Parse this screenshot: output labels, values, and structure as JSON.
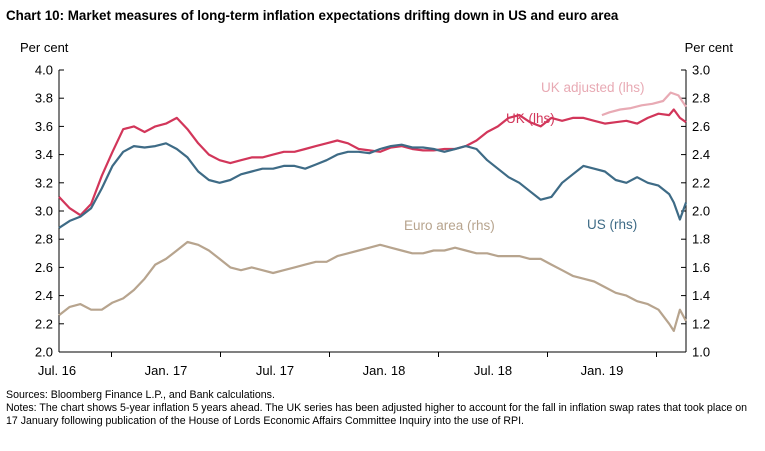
{
  "title": "Chart 10:  Market measures of long-term inflation expectations drifting down in US and euro area",
  "unit_left": "Per cent",
  "unit_right": "Per cent",
  "sources": "Sources:  Bloomberg Finance L.P., and Bank calculations.",
  "notes": "Notes:  The chart shows 5-year inflation 5 years ahead.  The UK series has been adjusted higher to account for the fall in inflation swap rates that took place on 17 January following publication of the House of Lords Economic Affairs Committee Inquiry into the use of RPI.",
  "colors": {
    "uk": "#d2365a",
    "uk_adjusted": "#e8aab4",
    "us": "#3e6b86",
    "euro": "#b7a48e",
    "axis": "#000000"
  },
  "chart_data": {
    "type": "line",
    "x_ticks": [
      "Jul. 16",
      "Jan. 17",
      "Jul. 17",
      "Jan. 18",
      "Jul. 18",
      "Jan. 19"
    ],
    "x_range": [
      0,
      41
    ],
    "ylim_left": [
      2.0,
      4.0
    ],
    "ylim_right": [
      1.0,
      3.0
    ],
    "y_ticks_left": [
      "4.0",
      "3.8",
      "3.6",
      "3.4",
      "3.2",
      "3.0",
      "2.8",
      "2.6",
      "2.4",
      "2.2",
      "2.0"
    ],
    "y_ticks_right": [
      "3.0",
      "2.8",
      "2.6",
      "2.4",
      "2.2",
      "2.0",
      "1.8",
      "1.6",
      "1.4",
      "1.2",
      "1.0"
    ],
    "series": [
      {
        "name": "UK (lhs)",
        "axis": "left",
        "color_key": "uk",
        "x": [
          0,
          0.7,
          1.4,
          2.1,
          2.8,
          3.5,
          4.2,
          4.9,
          5.6,
          6.3,
          7,
          7.7,
          8.4,
          9.1,
          9.8,
          10.5,
          11.2,
          11.9,
          12.6,
          13.3,
          14,
          14.7,
          15.4,
          16.1,
          16.8,
          17.5,
          18.2,
          18.9,
          19.6,
          20.3,
          21,
          21.7,
          22.4,
          23.1,
          23.8,
          24.5,
          25.2,
          25.9,
          26.6,
          27.3,
          28,
          28.7,
          29.4,
          30.1,
          30.8,
          31.5,
          32.2,
          32.9,
          33.6,
          34.3,
          35,
          35.7,
          36.4,
          37.1,
          37.8,
          38.5,
          39.2,
          39.9,
          40.2,
          40.6,
          41
        ],
        "y": [
          3.1,
          3.02,
          2.97,
          3.05,
          3.25,
          3.42,
          3.58,
          3.6,
          3.56,
          3.6,
          3.62,
          3.66,
          3.58,
          3.48,
          3.4,
          3.36,
          3.34,
          3.36,
          3.38,
          3.38,
          3.4,
          3.42,
          3.42,
          3.44,
          3.46,
          3.48,
          3.5,
          3.48,
          3.44,
          3.43,
          3.42,
          3.45,
          3.46,
          3.44,
          3.43,
          3.43,
          3.44,
          3.44,
          3.46,
          3.5,
          3.56,
          3.6,
          3.66,
          3.68,
          3.63,
          3.6,
          3.66,
          3.64,
          3.66,
          3.66,
          3.64,
          3.62,
          3.63,
          3.64,
          3.62,
          3.66,
          3.69,
          3.68,
          3.72,
          3.66,
          3.63
        ]
      },
      {
        "name": "UK adjusted (lhs)",
        "axis": "left",
        "color_key": "uk_adjusted",
        "x": [
          35.5,
          36,
          36.7,
          37.4,
          38.1,
          38.8,
          39.5,
          40,
          40.5,
          41
        ],
        "y": [
          3.68,
          3.7,
          3.72,
          3.73,
          3.75,
          3.76,
          3.78,
          3.84,
          3.82,
          3.74
        ]
      },
      {
        "name": "US (rhs)",
        "axis": "right",
        "color_key": "us",
        "x": [
          0,
          0.7,
          1.4,
          2.1,
          2.8,
          3.5,
          4.2,
          4.9,
          5.6,
          6.3,
          7,
          7.7,
          8.4,
          9.1,
          9.8,
          10.5,
          11.2,
          11.9,
          12.6,
          13.3,
          14,
          14.7,
          15.4,
          16.1,
          16.8,
          17.5,
          18.2,
          18.9,
          19.6,
          20.3,
          21,
          21.7,
          22.4,
          23.1,
          23.8,
          24.5,
          25.2,
          25.9,
          26.6,
          27.3,
          28,
          28.7,
          29.4,
          30.1,
          30.8,
          31.5,
          32.2,
          32.9,
          33.6,
          34.3,
          35,
          35.7,
          36.4,
          37.1,
          37.8,
          38.5,
          39.2,
          39.9,
          40.2,
          40.6,
          41
        ],
        "y": [
          1.88,
          1.93,
          1.96,
          2.02,
          2.16,
          2.32,
          2.42,
          2.46,
          2.45,
          2.46,
          2.48,
          2.44,
          2.38,
          2.28,
          2.22,
          2.2,
          2.22,
          2.26,
          2.28,
          2.3,
          2.3,
          2.32,
          2.32,
          2.3,
          2.33,
          2.36,
          2.4,
          2.42,
          2.42,
          2.41,
          2.44,
          2.46,
          2.47,
          2.45,
          2.45,
          2.44,
          2.42,
          2.44,
          2.46,
          2.44,
          2.36,
          2.3,
          2.24,
          2.2,
          2.14,
          2.08,
          2.1,
          2.2,
          2.26,
          2.32,
          2.3,
          2.28,
          2.22,
          2.2,
          2.24,
          2.2,
          2.18,
          2.12,
          2.06,
          1.94,
          2.06
        ]
      },
      {
        "name": "Euro area (rhs)",
        "axis": "right",
        "color_key": "euro",
        "x": [
          0,
          0.7,
          1.4,
          2.1,
          2.8,
          3.5,
          4.2,
          4.9,
          5.6,
          6.3,
          7,
          7.7,
          8.4,
          9.1,
          9.8,
          10.5,
          11.2,
          11.9,
          12.6,
          13.3,
          14,
          14.7,
          15.4,
          16.1,
          16.8,
          17.5,
          18.2,
          18.9,
          19.6,
          20.3,
          21,
          21.7,
          22.4,
          23.1,
          23.8,
          24.5,
          25.2,
          25.9,
          26.6,
          27.3,
          28,
          28.7,
          29.4,
          30.1,
          30.8,
          31.5,
          32.2,
          32.9,
          33.6,
          34.3,
          35,
          35.7,
          36.4,
          37.1,
          37.8,
          38.5,
          39.2,
          39.9,
          40.2,
          40.6,
          41
        ],
        "y": [
          1.26,
          1.32,
          1.34,
          1.3,
          1.3,
          1.35,
          1.38,
          1.44,
          1.52,
          1.62,
          1.66,
          1.72,
          1.78,
          1.76,
          1.72,
          1.66,
          1.6,
          1.58,
          1.6,
          1.58,
          1.56,
          1.58,
          1.6,
          1.62,
          1.64,
          1.64,
          1.68,
          1.7,
          1.72,
          1.74,
          1.76,
          1.74,
          1.72,
          1.7,
          1.7,
          1.72,
          1.72,
          1.74,
          1.72,
          1.7,
          1.7,
          1.68,
          1.68,
          1.68,
          1.66,
          1.66,
          1.62,
          1.58,
          1.54,
          1.52,
          1.5,
          1.46,
          1.42,
          1.4,
          1.36,
          1.34,
          1.3,
          1.2,
          1.15,
          1.3,
          1.22
        ]
      }
    ],
    "annotations": [
      "UK adjusted (lhs)",
      "UK (lhs)",
      "US (rhs)",
      "Euro area (rhs)"
    ],
    "grid": false
  }
}
